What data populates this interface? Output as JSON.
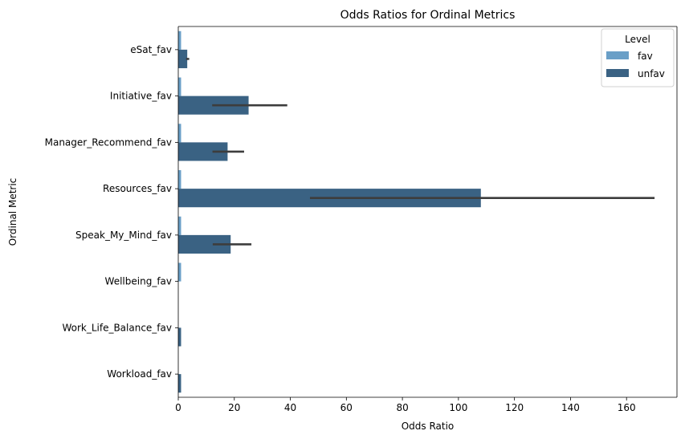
{
  "chart_data": {
    "type": "bar",
    "orientation": "horizontal",
    "title": "Odds Ratios for Ordinal Metrics",
    "xlabel": "Odds Ratio",
    "ylabel": "Ordinal Metric",
    "xlim": [
      0,
      178
    ],
    "xticks": [
      0,
      20,
      40,
      60,
      80,
      100,
      120,
      140,
      160
    ],
    "grid": false,
    "categories": [
      "eSat_fav",
      "Initiative_fav",
      "Manager_Recommend_fav",
      "Resources_fav",
      "Speak_My_Mind_fav",
      "Wellbeing_fav",
      "Work_Life_Balance_fav",
      "Workload_fav"
    ],
    "series": [
      {
        "name": "fav",
        "color": "#6a9fc7",
        "values": [
          1,
          1,
          1,
          1,
          1,
          1,
          0,
          0
        ],
        "ci_low": [
          null,
          null,
          null,
          null,
          null,
          null,
          null,
          null
        ],
        "ci_high": [
          null,
          null,
          null,
          null,
          null,
          null,
          null,
          null
        ]
      },
      {
        "name": "unfav",
        "color": "#3a6283",
        "values": [
          3.2,
          25.1,
          17.6,
          108,
          18.7,
          0,
          1,
          1
        ],
        "ci_low": [
          2.8,
          12.1,
          12.2,
          47,
          12.3,
          null,
          null,
          null
        ],
        "ci_high": [
          3.9,
          38.9,
          23.5,
          170,
          26.1,
          null,
          null,
          null
        ]
      }
    ],
    "legend": {
      "title": "Level",
      "position": "upper-right"
    }
  }
}
